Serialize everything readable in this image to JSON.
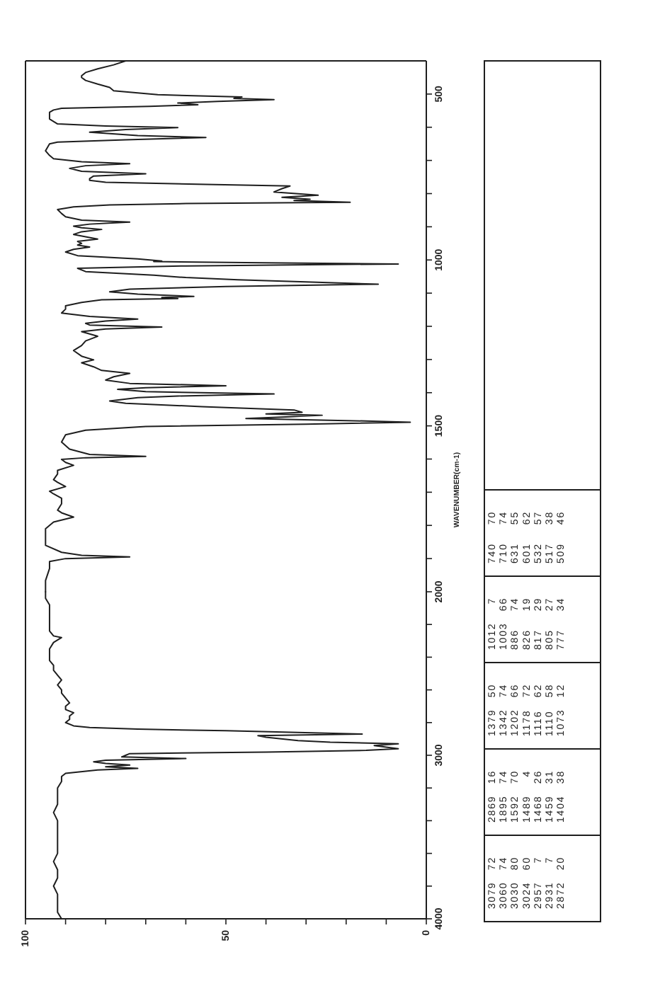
{
  "chart_data": [
    {
      "type": "line",
      "color": "#1e1e1e",
      "xlim": [
        100,
        0
      ],
      "ylim": [
        4000,
        2000
      ],
      "xticks": [
        100,
        {
          "value": 90,
          "label": null
        },
        {
          "value": 80,
          "label": null
        },
        {
          "value": 70,
          "label": null
        },
        {
          "value": 60,
          "label": null
        },
        50,
        {
          "value": 40,
          "label": null
        },
        {
          "value": 30,
          "label": null
        },
        {
          "value": 20,
          "label": null
        },
        {
          "value": 10,
          "label": null
        },
        0
      ],
      "yticks": [
        4000,
        {
          "value": 3800,
          "label": null
        },
        {
          "value": 3600,
          "label": null
        },
        {
          "value": 3400,
          "label": null
        },
        {
          "value": 3200,
          "label": null
        },
        3000,
        {
          "value": 2800,
          "label": null
        },
        {
          "value": 2600,
          "label": null
        },
        {
          "value": 2400,
          "label": null
        },
        {
          "value": 2200,
          "label": null
        }
      ],
      "x": [
        91,
        92,
        92,
        92,
        93,
        92,
        92,
        93,
        92,
        92,
        92,
        92,
        92,
        93,
        92,
        92,
        92,
        91,
        91,
        90,
        82,
        72,
        80,
        74,
        80,
        83,
        80,
        60,
        76,
        75,
        74,
        40,
        15,
        7,
        13,
        7,
        24,
        32,
        40,
        42,
        16,
        32,
        50,
        72,
        84,
        88,
        90,
        89,
        89,
        88,
        90,
        90,
        89,
        90,
        91,
        91,
        92,
        91,
        92,
        93,
        93,
        94,
        94,
        94,
        93,
        91,
        93,
        94,
        94,
        94,
        94,
        94,
        95,
        95
      ],
      "values": [
        4000,
        3960,
        3900,
        3850,
        3800,
        3750,
        3700,
        3650,
        3600,
        3550,
        3500,
        3450,
        3400,
        3350,
        3300,
        3250,
        3200,
        3160,
        3130,
        3110,
        3090,
        3080,
        3070,
        3060,
        3050,
        3040,
        3030,
        3020,
        3010,
        3000,
        2990,
        2980,
        2970,
        2960,
        2940,
        2930,
        2920,
        2910,
        2890,
        2880,
        2870,
        2860,
        2850,
        2840,
        2830,
        2820,
        2800,
        2780,
        2760,
        2740,
        2720,
        2700,
        2680,
        2650,
        2620,
        2600,
        2570,
        2540,
        2510,
        2480,
        2450,
        2420,
        2390,
        2350,
        2310,
        2280,
        2270,
        2240,
        2200,
        2160,
        2120,
        2080,
        2040,
        2000
      ],
      "annotations": [
        "3079 72",
        "3060 74",
        "3030 80",
        "3024 60",
        "2957 7",
        "2931 7",
        "2872 20",
        "2869 16",
        "1895 74",
        "1592 70",
        "1489 4",
        "1468 26",
        "1459 31",
        "1404 38",
        "1379 50",
        "1342 74",
        "1202 66",
        "1178 72",
        "1116 62",
        "1110 58",
        "1073 12",
        "1012 7",
        "1003 66",
        "886 74",
        "826 19",
        "817 29",
        "805 27",
        "777 34",
        "740 70",
        "710 74",
        "631 55",
        "601 62",
        "532 57",
        "517 38",
        "509 46"
      ]
    },
    {
      "type": "line",
      "color": "#1e1e1e",
      "xlim": [
        100,
        0
      ],
      "ylim": [
        2000,
        400
      ],
      "tick_labels": "y",
      "ylabel": "WAVENUMBER(cm-1)",
      "yticks": [
        2000,
        {
          "value": 1900,
          "label": null
        },
        {
          "value": 1800,
          "label": null
        },
        {
          "value": 1700,
          "label": null
        },
        {
          "value": 1600,
          "label": null
        },
        1500,
        {
          "value": 1400,
          "label": null
        },
        {
          "value": 1300,
          "label": null
        },
        {
          "value": 1200,
          "label": null
        },
        {
          "value": 1100,
          "label": null
        },
        1000,
        {
          "value": 900,
          "label": null
        },
        {
          "value": 800,
          "label": null
        },
        {
          "value": 700,
          "label": null
        },
        {
          "value": 600,
          "label": null
        },
        500
      ],
      "x": [
        95,
        95,
        94,
        94,
        90,
        74,
        86,
        91,
        95,
        95,
        93,
        88,
        91,
        92,
        91,
        91,
        93,
        94,
        90,
        92,
        93,
        92,
        92,
        88,
        90,
        91,
        85,
        70,
        84,
        89,
        91,
        90,
        85,
        70,
        30,
        4,
        20,
        45,
        35,
        26,
        40,
        31,
        33,
        56,
        75,
        79,
        72,
        62,
        38,
        70,
        77,
        70,
        50,
        74,
        80,
        78,
        74,
        81,
        83,
        86,
        83,
        86,
        88,
        86,
        85,
        82,
        86,
        80,
        66,
        84,
        85,
        80,
        72,
        84,
        91,
        90,
        90,
        86,
        81,
        62,
        66,
        58,
        72,
        79,
        74,
        50,
        12,
        30,
        47,
        60,
        68,
        85,
        87,
        60,
        7,
        45,
        68,
        66,
        72,
        87,
        90,
        88,
        84,
        87,
        86,
        87,
        82,
        85,
        88,
        86,
        81,
        86,
        88,
        84,
        74,
        86,
        90,
        91,
        92,
        88,
        79,
        60,
        19,
        33,
        29,
        36,
        27,
        38,
        36,
        34,
        55,
        80,
        84,
        84,
        83,
        70,
        86,
        89,
        85,
        74,
        86,
        93,
        94,
        95,
        94,
        92,
        75,
        55,
        72,
        84,
        75,
        62,
        80,
        92,
        94,
        94,
        93,
        91,
        69,
        57,
        62,
        52,
        38,
        48,
        46,
        67,
        78,
        79,
        82,
        85,
        86,
        86,
        85,
        82,
        78,
        75
      ],
      "values": [
        2000,
        1966,
        1930,
        1909,
        1900,
        1895,
        1890,
        1881,
        1860,
        1810,
        1790,
        1775,
        1762,
        1754,
        1735,
        1718,
        1705,
        1697,
        1683,
        1670,
        1662,
        1645,
        1634,
        1619,
        1610,
        1601,
        1596,
        1592,
        1586,
        1570,
        1549,
        1527,
        1513,
        1502,
        1495,
        1489,
        1484,
        1478,
        1473,
        1468,
        1464,
        1459,
        1452,
        1442,
        1432,
        1425,
        1415,
        1410,
        1404,
        1397,
        1390,
        1385,
        1379,
        1372,
        1362,
        1352,
        1342,
        1333,
        1322,
        1310,
        1301,
        1290,
        1273,
        1258,
        1244,
        1230,
        1216,
        1208,
        1202,
        1196,
        1191,
        1184,
        1178,
        1170,
        1160,
        1148,
        1138,
        1128,
        1120,
        1116,
        1113,
        1110,
        1103,
        1096,
        1088,
        1080,
        1073,
        1066,
        1060,
        1053,
        1046,
        1035,
        1025,
        1018,
        1012,
        1008,
        1005,
        1003,
        997,
        987,
        976,
        968,
        961,
        955,
        950,
        944,
        937,
        930,
        923,
        915,
        908,
        903,
        898,
        892,
        886,
        880,
        870,
        860,
        848,
        840,
        834,
        830,
        826,
        821,
        817,
        811,
        805,
        795,
        785,
        777,
        772,
        766,
        760,
        755,
        747,
        740,
        733,
        724,
        716,
        710,
        704,
        695,
        685,
        671,
        650,
        645,
        638,
        631,
        625,
        615,
        607,
        601,
        596,
        590,
        575,
        555,
        548,
        543,
        537,
        532,
        527,
        522,
        517,
        513,
        509,
        502,
        490,
        480,
        470,
        459,
        450,
        445,
        435,
        424,
        412,
        400
      ]
    }
  ]
}
